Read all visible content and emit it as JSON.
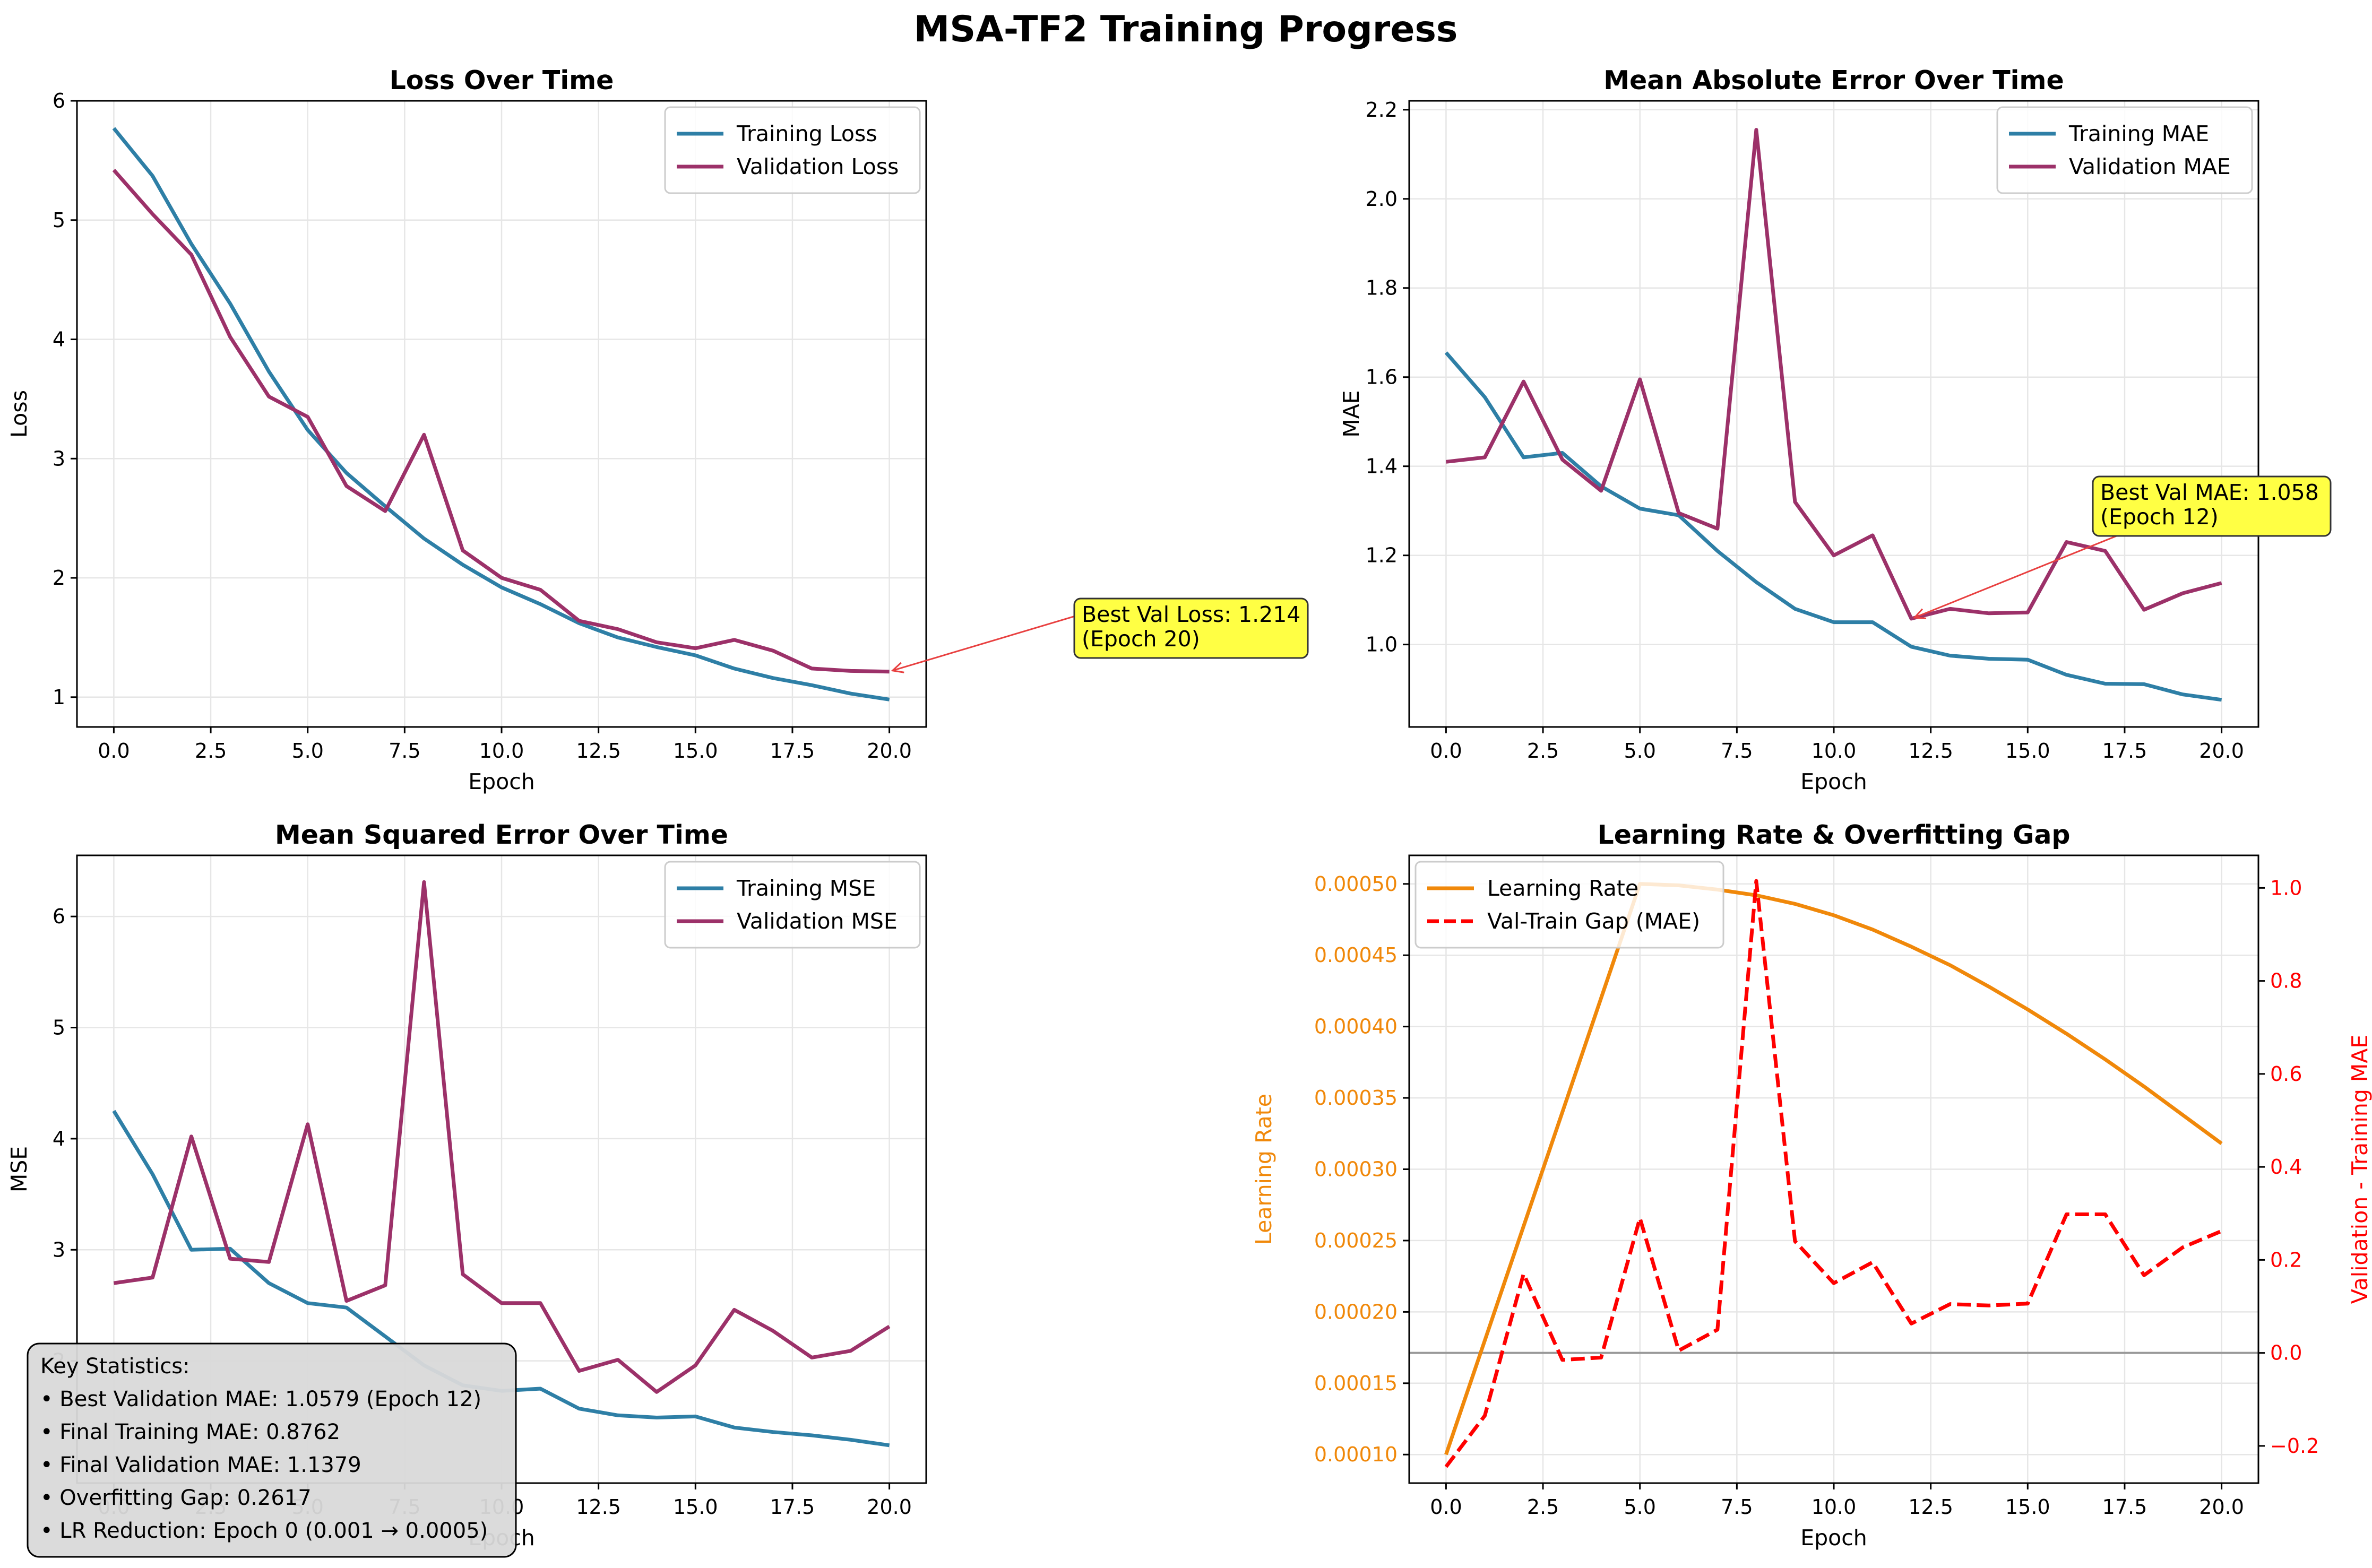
{
  "figure": {
    "title": "MSA-TF2 Training Progress"
  },
  "colors": {
    "train": "#2e7fa6",
    "val": "#9c3169",
    "lr": "#f0880a",
    "gap": "#ff0000",
    "annot_fill": "#ffff44",
    "annot_arrow": "#e84040",
    "stats_fill": "#d9d9d9",
    "grid": "#e6e6e6",
    "zero_line": "#999999"
  },
  "stats_box": {
    "lines": [
      "Key Statistics:",
      "• Best Validation MAE: 1.0579 (Epoch 12)",
      "• Final Training MAE: 0.8762",
      "• Final Validation MAE: 1.1379",
      "• Overfitting Gap: 0.2617",
      "• LR Reduction: Epoch 0 (0.001 → 0.0005)"
    ]
  },
  "chart_data": [
    {
      "type": "line",
      "title": "Loss Over Time",
      "xlabel": "Epoch",
      "ylabel": "Loss",
      "xlim": [
        -0.95,
        20.95
      ],
      "ylim": [
        0.75,
        6.0
      ],
      "xticks": [
        0,
        2.5,
        5,
        7.5,
        10,
        12.5,
        15,
        17.5,
        20
      ],
      "xtick_labels": [
        "0.0",
        "2.5",
        "5.0",
        "7.5",
        "10.0",
        "12.5",
        "15.0",
        "17.5",
        "20.0"
      ],
      "yticks": [
        1,
        2,
        3,
        4,
        5,
        6
      ],
      "ytick_labels": [
        "1",
        "2",
        "3",
        "4",
        "5",
        "6"
      ],
      "grid": true,
      "legend": "top-right",
      "x": [
        0,
        1,
        2,
        3,
        4,
        5,
        6,
        7,
        8,
        9,
        10,
        11,
        12,
        13,
        14,
        15,
        16,
        17,
        18,
        19,
        20
      ],
      "series": [
        {
          "name": "Training Loss",
          "color": "#2e7fa6",
          "dash": false,
          "values": [
            5.77,
            5.37,
            4.8,
            4.3,
            3.73,
            3.24,
            2.88,
            2.6,
            2.33,
            2.11,
            1.92,
            1.78,
            1.62,
            1.5,
            1.42,
            1.35,
            1.24,
            1.16,
            1.1,
            1.03,
            0.98
          ]
        },
        {
          "name": "Validation Loss",
          "color": "#9c3169",
          "dash": false,
          "values": [
            5.42,
            5.05,
            4.71,
            4.02,
            3.52,
            3.35,
            2.77,
            2.56,
            3.2,
            2.23,
            2.0,
            1.9,
            1.64,
            1.57,
            1.46,
            1.41,
            1.48,
            1.39,
            1.24,
            1.22,
            1.214
          ]
        }
      ],
      "annotation": {
        "text": [
          "Best Val Loss: 1.214",
          "(Epoch 20)"
        ],
        "point": [
          20,
          1.214
        ]
      }
    },
    {
      "type": "line",
      "title": "Mean Absolute Error Over Time",
      "xlabel": "Epoch",
      "ylabel": "MAE",
      "xlim": [
        -0.95,
        20.95
      ],
      "ylim": [
        0.815,
        2.22
      ],
      "xticks": [
        0,
        2.5,
        5,
        7.5,
        10,
        12.5,
        15,
        17.5,
        20
      ],
      "xtick_labels": [
        "0.0",
        "2.5",
        "5.0",
        "7.5",
        "10.0",
        "12.5",
        "15.0",
        "17.5",
        "20.0"
      ],
      "yticks": [
        1.0,
        1.2,
        1.4,
        1.6,
        1.8,
        2.0,
        2.2
      ],
      "ytick_labels": [
        "1.0",
        "1.2",
        "1.4",
        "1.6",
        "1.8",
        "2.0",
        "2.2"
      ],
      "grid": true,
      "legend": "top-right",
      "x": [
        0,
        1,
        2,
        3,
        4,
        5,
        6,
        7,
        8,
        9,
        10,
        11,
        12,
        13,
        14,
        15,
        16,
        17,
        18,
        19,
        20
      ],
      "series": [
        {
          "name": "Training MAE",
          "color": "#2e7fa6",
          "dash": false,
          "values": [
            1.655,
            1.555,
            1.42,
            1.43,
            1.355,
            1.305,
            1.29,
            1.21,
            1.14,
            1.08,
            1.05,
            1.05,
            0.995,
            0.975,
            0.968,
            0.966,
            0.932,
            0.912,
            0.911,
            0.888,
            0.876
          ]
        },
        {
          "name": "Validation MAE",
          "color": "#9c3169",
          "dash": false,
          "values": [
            1.41,
            1.42,
            1.59,
            1.415,
            1.345,
            1.595,
            1.295,
            1.26,
            2.155,
            1.32,
            1.2,
            1.245,
            1.058,
            1.08,
            1.07,
            1.072,
            1.23,
            1.21,
            1.078,
            1.115,
            1.138
          ]
        }
      ],
      "annotation": {
        "text": [
          "Best Val MAE: 1.058",
          "(Epoch 12)"
        ],
        "point": [
          12,
          1.058
        ]
      }
    },
    {
      "type": "line",
      "title": "Mean Squared Error Over Time",
      "xlabel": "Epoch",
      "ylabel": "MSE",
      "xlim": [
        -0.95,
        20.95
      ],
      "ylim": [
        0.9,
        6.55
      ],
      "xticks": [
        0,
        2.5,
        5,
        7.5,
        10,
        12.5,
        15,
        17.5,
        20
      ],
      "xtick_labels": [
        "0.0",
        "2.5",
        "5.0",
        "7.5",
        "10.0",
        "12.5",
        "15.0",
        "17.5",
        "20.0"
      ],
      "yticks": [
        2,
        3,
        4,
        5,
        6
      ],
      "ytick_labels": [
        "2",
        "3",
        "4",
        "5",
        "6"
      ],
      "grid": true,
      "legend": "top-right",
      "x": [
        0,
        1,
        2,
        3,
        4,
        5,
        6,
        7,
        8,
        9,
        10,
        11,
        12,
        13,
        14,
        15,
        16,
        17,
        18,
        19,
        20
      ],
      "series": [
        {
          "name": "Training MSE",
          "color": "#2e7fa6",
          "dash": false,
          "values": [
            4.25,
            3.68,
            3.0,
            3.01,
            2.7,
            2.52,
            2.48,
            2.22,
            1.96,
            1.78,
            1.73,
            1.75,
            1.57,
            1.51,
            1.49,
            1.5,
            1.4,
            1.36,
            1.33,
            1.29,
            1.24
          ]
        },
        {
          "name": "Validation MSE",
          "color": "#9c3169",
          "dash": false,
          "values": [
            2.7,
            2.75,
            4.02,
            2.92,
            2.89,
            4.13,
            2.54,
            2.68,
            6.31,
            2.78,
            2.52,
            2.52,
            1.91,
            2.01,
            1.72,
            1.96,
            2.46,
            2.27,
            2.03,
            2.09,
            2.31
          ]
        }
      ]
    },
    {
      "type": "line",
      "title": "Learning Rate & Overfitting Gap",
      "xlabel": "Epoch",
      "ylabel": "Learning Rate",
      "ylabel_right": "Validation - Training MAE",
      "xlim": [
        -0.95,
        20.95
      ],
      "ylim": [
        8e-05,
        0.00052
      ],
      "ylim_right": [
        -0.28,
        1.07
      ],
      "xticks": [
        0,
        2.5,
        5,
        7.5,
        10,
        12.5,
        15,
        17.5,
        20
      ],
      "xtick_labels": [
        "0.0",
        "2.5",
        "5.0",
        "7.5",
        "10.0",
        "12.5",
        "15.0",
        "17.5",
        "20.0"
      ],
      "yticks": [
        0.0001,
        0.00015,
        0.0002,
        0.00025,
        0.0003,
        0.00035,
        0.0004,
        0.00045,
        0.0005
      ],
      "ytick_labels": [
        "0.00010",
        "0.00015",
        "0.00020",
        "0.00025",
        "0.00030",
        "0.00035",
        "0.00040",
        "0.00045",
        "0.00050"
      ],
      "yticks_right": [
        -0.2,
        0.0,
        0.2,
        0.4,
        0.6,
        0.8,
        1.0
      ],
      "ytick_labels_right": [
        "−0.2",
        "0.0",
        "0.2",
        "0.4",
        "0.6",
        "0.8",
        "1.0"
      ],
      "grid": true,
      "legend": "top-left",
      "zero_line_right": 0.0,
      "x": [
        0,
        1,
        2,
        3,
        4,
        5,
        6,
        7,
        8,
        9,
        10,
        11,
        12,
        13,
        14,
        15,
        16,
        17,
        18,
        19,
        20
      ],
      "series": [
        {
          "name": "Learning Rate",
          "color": "#f0880a",
          "dash": false,
          "axis": "left",
          "values": [
            0.0001,
            0.00018,
            0.00026,
            0.00034,
            0.00042,
            0.0005,
            0.000499,
            0.000496,
            0.000492,
            0.000486,
            0.000478,
            0.000468,
            0.000456,
            0.000443,
            0.000428,
            0.000412,
            0.000395,
            0.000377,
            0.000358,
            0.000338,
            0.000318
          ]
        },
        {
          "name": "Val-Train Gap (MAE)",
          "color": "#ff0000",
          "dash": true,
          "axis": "right",
          "values": [
            -0.245,
            -0.135,
            0.17,
            -0.015,
            -0.01,
            0.29,
            0.005,
            0.05,
            1.015,
            0.24,
            0.15,
            0.195,
            0.063,
            0.105,
            0.102,
            0.106,
            0.298,
            0.298,
            0.167,
            0.227,
            0.262
          ]
        }
      ]
    }
  ]
}
